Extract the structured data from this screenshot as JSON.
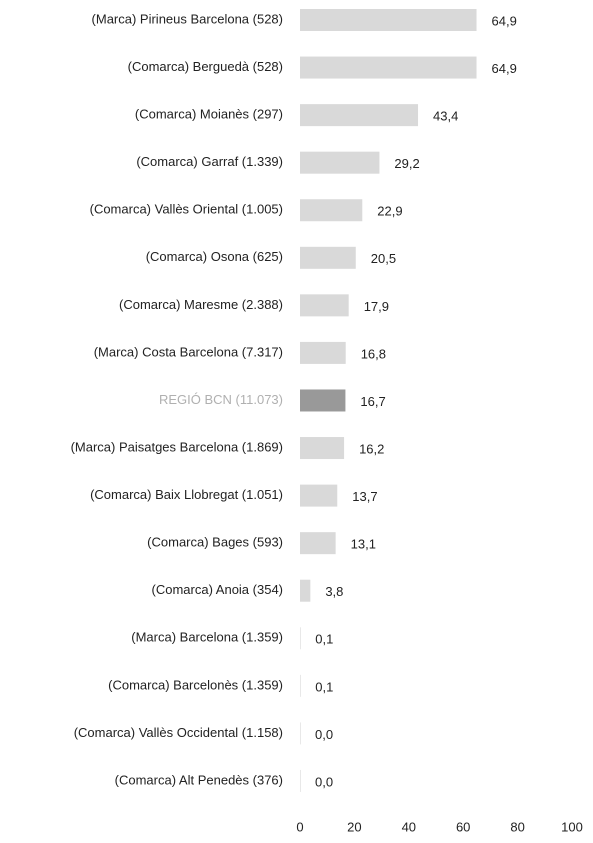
{
  "chart_data": {
    "type": "hbar",
    "categories": [
      "(Marca) Pirineus Barcelona (528)",
      "(Comarca) Berguedà (528)",
      "(Comarca) Moianès (297)",
      "(Comarca) Garraf (1.339)",
      "(Comarca) Vallès Oriental (1.005)",
      "(Comarca) Osona (625)",
      "(Comarca) Maresme (2.388)",
      "(Marca) Costa Barcelona (7.317)",
      "REGIÓ BCN (11.073)",
      "(Marca) Paisatges Barcelona (1.869)",
      "(Comarca) Baix Llobregat (1.051)",
      "(Comarca) Bages (593)",
      "(Comarca) Anoia (354)",
      "(Marca) Barcelona (1.359)",
      "(Comarca) Barcelonès (1.359)",
      "(Comarca) Vallès Occidental (1.158)",
      "(Comarca) Alt Penedès (376)"
    ],
    "values": [
      64.9,
      64.9,
      43.4,
      29.2,
      22.9,
      20.5,
      17.9,
      16.8,
      16.7,
      16.2,
      13.7,
      13.1,
      3.8,
      0.1,
      0.1,
      0.0,
      0.0
    ],
    "value_labels": [
      "64,9",
      "64,9",
      "43,4",
      "29,2",
      "22,9",
      "20,5",
      "17,9",
      "16,8",
      "16,7",
      "16,2",
      "13,7",
      "13,1",
      "3,8",
      "0,1",
      "0,1",
      "0,0",
      "0,0"
    ],
    "colors": [
      "#d9d9d9",
      "#d9d9d9",
      "#d9d9d9",
      "#d9d9d9",
      "#d9d9d9",
      "#d9d9d9",
      "#d9d9d9",
      "#d9d9d9",
      "#999999",
      "#d9d9d9",
      "#d9d9d9",
      "#d9d9d9",
      "#d9d9d9",
      "#d9d9d9",
      "#d9d9d9",
      "#d9d9d9",
      "#d9d9d9"
    ],
    "label_colors": [
      "#222222",
      "#222222",
      "#222222",
      "#222222",
      "#222222",
      "#222222",
      "#222222",
      "#222222",
      "#b0b0b0",
      "#222222",
      "#222222",
      "#222222",
      "#222222",
      "#222222",
      "#222222",
      "#222222",
      "#222222"
    ],
    "xlim": [
      0,
      100
    ],
    "xticks": [
      0,
      20,
      40,
      60,
      80,
      100
    ]
  }
}
